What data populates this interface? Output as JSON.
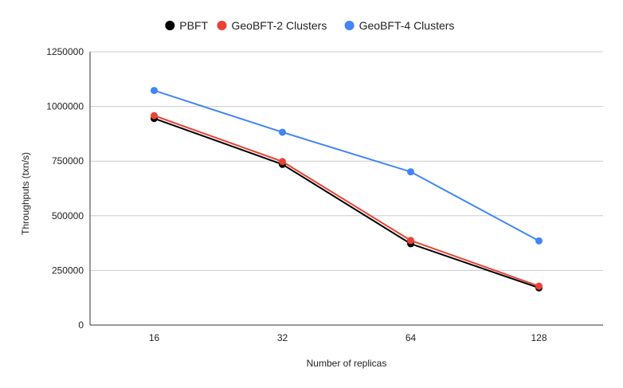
{
  "chart_data": {
    "type": "line",
    "title": "",
    "xlabel": "Number of replicas",
    "ylabel": "Throughputs (txn/s)",
    "categories": [
      "16",
      "32",
      "64",
      "128"
    ],
    "y_ticks": [
      "0",
      "250000",
      "500000",
      "750000",
      "1000000",
      "1250000"
    ],
    "ylim": [
      0,
      1250000
    ],
    "grid": "horizontal",
    "legend_position": "top",
    "series": [
      {
        "name": "PBFT",
        "color": "#000000",
        "values": [
          945000,
          735000,
          372000,
          170000
        ]
      },
      {
        "name": "GeoBFT-2 Clusters",
        "color": "#ea4335",
        "values": [
          958000,
          748000,
          387000,
          178000
        ]
      },
      {
        "name": "GeoBFT-4 Clusters",
        "color": "#4285f4",
        "values": [
          1073000,
          882000,
          701000,
          385000
        ]
      }
    ]
  }
}
